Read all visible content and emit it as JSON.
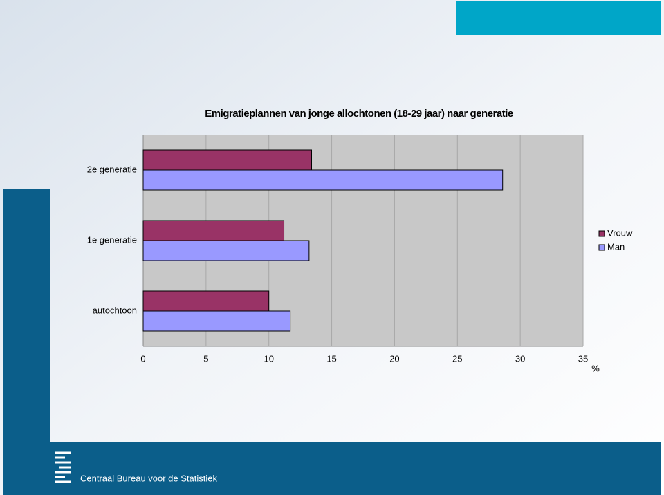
{
  "chart_data": {
    "type": "bar",
    "orientation": "horizontal",
    "title": "Emigratieplannen van jonge allochtonen (18-29 jaar) naar generatie",
    "categories": [
      "2e generatie",
      "1e generatie",
      "autochtoon"
    ],
    "series": [
      {
        "name": "Vrouw",
        "color": "#993366",
        "values": [
          13.4,
          11.2,
          10.0
        ]
      },
      {
        "name": "Man",
        "color": "#9999ff",
        "values": [
          28.6,
          13.2,
          11.7
        ]
      }
    ],
    "x_label": "%",
    "xlim": [
      0,
      35
    ],
    "xticks": [
      0,
      5,
      10,
      15,
      20,
      25,
      30,
      35
    ],
    "grid": true,
    "legend": "right"
  },
  "footer": {
    "text": "Centraal Bureau voor de Statistiek"
  }
}
